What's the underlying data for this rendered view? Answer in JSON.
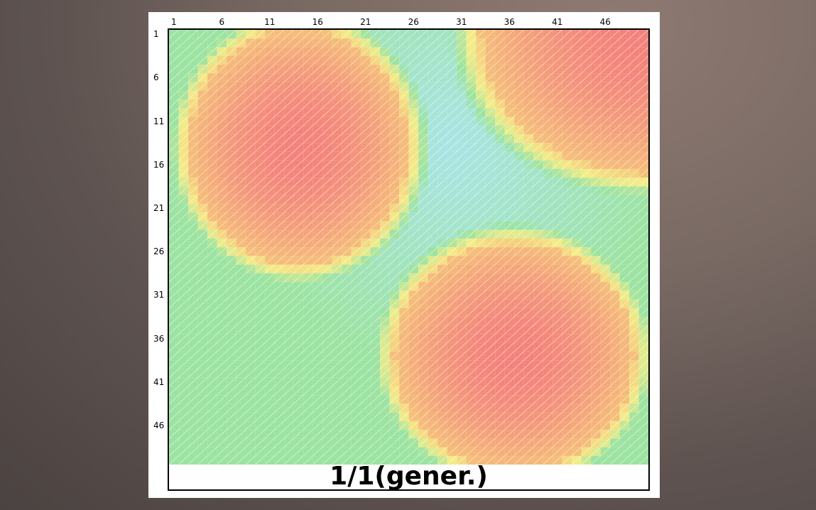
{
  "chart_data": {
    "type": "heatmap",
    "rows": 50,
    "cols": 50,
    "x_ticks": [
      "1",
      "6",
      "11",
      "16",
      "21",
      "26",
      "31",
      "36",
      "41",
      "46"
    ],
    "y_ticks": [
      "1",
      "6",
      "11",
      "16",
      "21",
      "26",
      "31",
      "36",
      "41",
      "46"
    ],
    "caption": "1/1(gener.)",
    "value_range": [
      0,
      1
    ],
    "hotspots": [
      {
        "center_col": 14,
        "center_row": 14,
        "radius_cols": 11.5,
        "radius_rows": 13.5,
        "peak": 1.0
      },
      {
        "center_col": 50,
        "center_row": 1,
        "radius_cols": 17,
        "radius_rows": 16,
        "peak": 1.0
      },
      {
        "center_col": 36.5,
        "center_row": 38,
        "radius_cols": 12.5,
        "radius_rows": 13,
        "peak": 1.0
      }
    ],
    "background_gradient": {
      "low_cell_col": 30,
      "low_cell_row": 14,
      "base": 0.22
    },
    "colormap": [
      "#9fb4f2",
      "#a9e4ec",
      "#9be3a0",
      "#f3ec86",
      "#f5c679",
      "#f4817a"
    ],
    "grid": true,
    "legend": "none"
  }
}
